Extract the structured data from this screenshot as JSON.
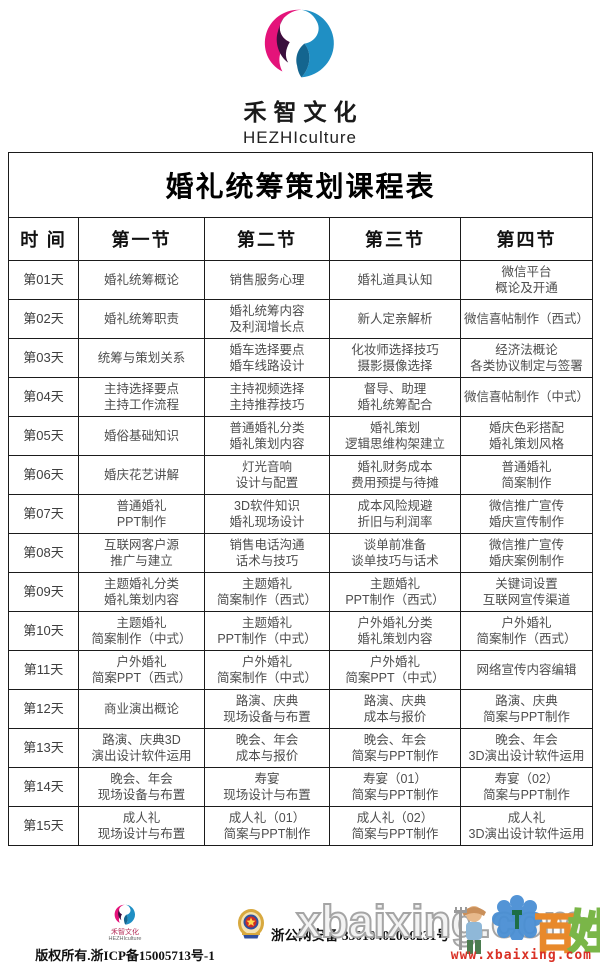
{
  "brand": {
    "name_cn": "禾智文化",
    "name_en": "HEZHIculture",
    "logo_colors": {
      "pink": "#E4137A",
      "purple": "#3A0F3D",
      "blue": "#1F8FC4",
      "blue_dark": "#14658F"
    }
  },
  "table": {
    "title": "婚礼统筹策划课程表",
    "headers": [
      "时 间",
      "第一节",
      "第二节",
      "第三节",
      "第四节"
    ],
    "rows": [
      [
        "第01天",
        "婚礼统筹概论",
        "销售服务心理",
        "婚礼道具认知",
        "微信平台\n概论及开通"
      ],
      [
        "第02天",
        "婚礼统筹职责",
        "婚礼统筹内容\n及利润增长点",
        "新人定亲解析",
        "微信喜帖制作（西式）"
      ],
      [
        "第03天",
        "统筹与策划关系",
        "婚车选择要点\n婚车线路设计",
        "化妆师选择技巧\n摄影摄像选择",
        "经济法概论\n各类协议制定与签署"
      ],
      [
        "第04天",
        "主持选择要点\n主持工作流程",
        "主持视频选择\n主持推荐技巧",
        "督导、助理\n婚礼统筹配合",
        "微信喜帖制作（中式）"
      ],
      [
        "第05天",
        "婚俗基础知识",
        "普通婚礼分类\n婚礼策划内容",
        "婚礼策划\n逻辑思维构架建立",
        "婚庆色彩搭配\n婚礼策划风格"
      ],
      [
        "第06天",
        "婚庆花艺讲解",
        "灯光音响\n设计与配置",
        "婚礼财务成本\n费用预提与待摊",
        "普通婚礼\n简案制作"
      ],
      [
        "第07天",
        "普通婚礼\nPPT制作",
        "3D软件知识\n婚礼现场设计",
        "成本风险规避\n折旧与利润率",
        "微信推广宣传\n婚庆宣传制作"
      ],
      [
        "第08天",
        "互联网客户源\n推广与建立",
        "销售电话沟通\n话术与技巧",
        "谈单前准备\n谈单技巧与话术",
        "微信推广宣传\n婚庆案例制作"
      ],
      [
        "第09天",
        "主题婚礼分类\n婚礼策划内容",
        "主题婚礼\n简案制作（西式）",
        "主题婚礼\nPPT制作（西式）",
        "关键词设置\n互联网宣传渠道"
      ],
      [
        "第10天",
        "主题婚礼\n简案制作（中式）",
        "主题婚礼\nPPT制作（中式）",
        "户外婚礼分类\n婚礼策划内容",
        "户外婚礼\n简案制作（西式）"
      ],
      [
        "第11天",
        "户外婚礼\n简案PPT（西式）",
        "户外婚礼\n简案制作（中式）",
        "户外婚礼\n简案PPT（中式）",
        "网络宣传内容编辑"
      ],
      [
        "第12天",
        "商业演出概论",
        "路演、庆典\n现场设备与布置",
        "路演、庆典\n成本与报价",
        "路演、庆典\n简案与PPT制作"
      ],
      [
        "第13天",
        "路演、庆典3D\n演出设计软件运用",
        "晚会、年会\n成本与报价",
        "晚会、年会\n简案与PPT制作",
        "晚会、年会\n3D演出设计软件运用"
      ],
      [
        "第14天",
        "晚会、年会\n现场设备与布置",
        "寿宴\n现场设计与布置",
        "寿宴（01）\n简案与PPT制作",
        "寿宴（02）\n简案与PPT制作"
      ],
      [
        "第15天",
        "成人礼\n现场设计与布置",
        "成人礼（01）\n简案与PPT制作",
        "成人礼（02）\n简案与PPT制作",
        "成人礼\n3D演出设计软件运用"
      ]
    ]
  },
  "footer": {
    "mini_logo_cn": "禾智文化",
    "mini_logo_en": "HEZHIculture",
    "copyright": "版权所有.浙ICP备15005713号-1",
    "security": "浙公网安备 33010402000231号"
  },
  "watermark": {
    "big_text": "xbaixing.com",
    "glyph_bai": "百",
    "glyph_xing": "姓",
    "url": "www.xbaixing.com",
    "red": "#d93025"
  }
}
